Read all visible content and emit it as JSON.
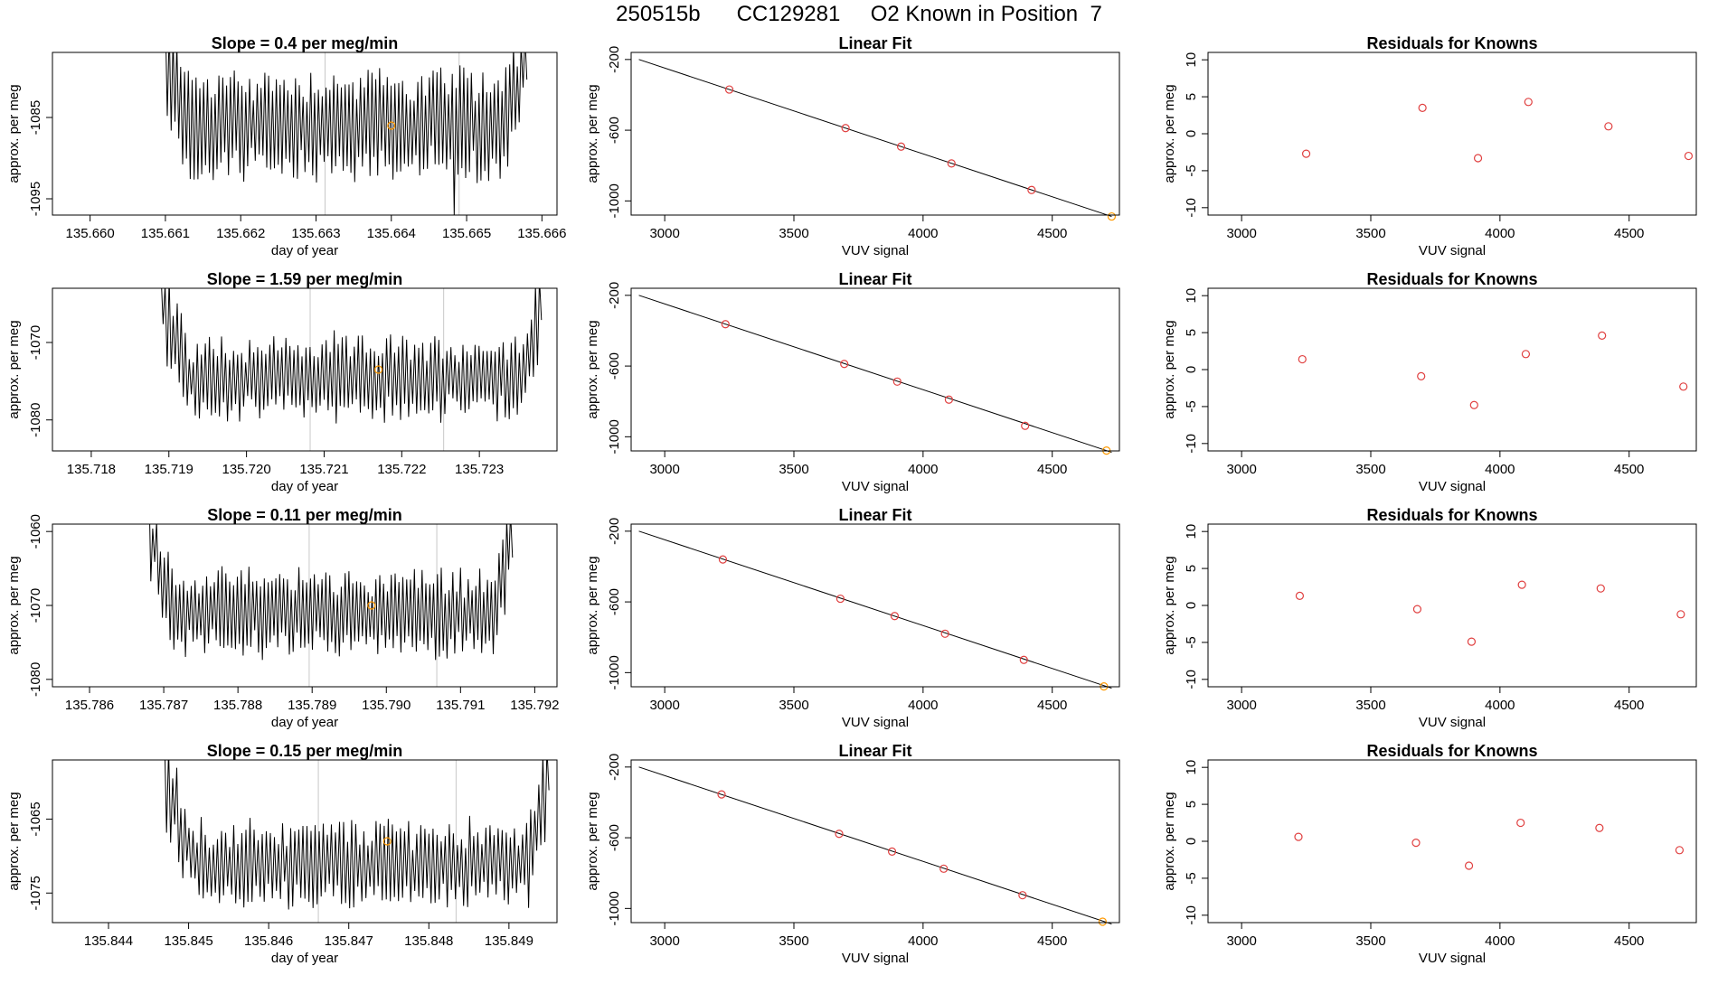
{
  "page": {
    "title": "250515b      CC129281     O2 Known in Position  7"
  },
  "colors": {
    "trace": "#000000",
    "mean_marker": "#ff9900",
    "fit_point": "#e04040",
    "residual_point": "#e04040",
    "boundary_line": "#c8c8c8"
  },
  "chart_data": [
    {
      "type": "line",
      "row": 1,
      "col": "time",
      "title": "Slope =  0.4  per meg/min",
      "xlabel": "day of year",
      "ylabel": "approx. per meg",
      "xlim": [
        135.6595,
        135.6662
      ],
      "ylim": [
        -1097,
        -1077
      ],
      "xticks": [
        135.66,
        135.661,
        135.662,
        135.663,
        135.664,
        135.665,
        135.666
      ],
      "xtick_labels": [
        "135.660",
        "135.661",
        "135.662",
        "135.663",
        "135.664",
        "135.665",
        "135.666"
      ],
      "yticks": [
        -1095,
        -1085
      ],
      "ytick_labels": [
        "-1095",
        "-1085"
      ],
      "series": [
        {
          "x_start": 135.661,
          "x_end": 135.6658,
          "n_points": 190,
          "y_mean": -1086,
          "amplitude": 6,
          "edges": {
            "start_y": -1077,
            "end_y": -1077,
            "start_pts": 12,
            "end_pts": 14
          },
          "spikes": [
            {
              "x": 135.66483,
              "y": -1097
            }
          ]
        }
      ],
      "vlines": [
        135.66312,
        135.6649
      ],
      "mean_marker": {
        "x": 135.664,
        "y": -1086
      }
    },
    {
      "type": "scatter",
      "row": 1,
      "col": "fit",
      "title": "Linear Fit",
      "xlabel": "VUV signal",
      "ylabel": "approx. per meg",
      "xlim": [
        2870,
        4760
      ],
      "ylim": [
        -1080,
        -160
      ],
      "xticks": [
        3000,
        3500,
        4000,
        4500
      ],
      "xtick_labels": [
        "3000",
        "3500",
        "4000",
        "4500"
      ],
      "yticks": [
        -1000,
        -600,
        -200
      ],
      "ytick_labels": [
        "-1000",
        "-600",
        "-200"
      ],
      "line": {
        "x": [
          2900,
          4730
        ],
        "y": [
          -200,
          -1088
        ]
      },
      "points": {
        "x": [
          3250,
          3700,
          3915,
          4110,
          4420,
          4730
        ],
        "y": [
          -370,
          -588,
          -693,
          -788,
          -938,
          -1088
        ]
      },
      "highlight_last": true
    },
    {
      "type": "scatter",
      "row": 1,
      "col": "resid",
      "title": "Residuals for Knowns",
      "xlabel": "VUV signal",
      "ylabel": "approx. per meg",
      "xlim": [
        2870,
        4760
      ],
      "ylim": [
        -11,
        11
      ],
      "xticks": [
        3000,
        3500,
        4000,
        4500
      ],
      "xtick_labels": [
        "3000",
        "3500",
        "4000",
        "4500"
      ],
      "yticks": [
        -10,
        -5,
        0,
        5,
        10
      ],
      "ytick_labels": [
        "-10",
        "-5",
        "0",
        "5",
        "10"
      ],
      "points": {
        "x": [
          3250,
          3700,
          3915,
          4110,
          4420,
          4730
        ],
        "y": [
          -2.7,
          3.5,
          -3.3,
          4.3,
          1.0,
          -3.0
        ]
      }
    },
    {
      "type": "line",
      "row": 2,
      "col": "time",
      "title": "Slope =  1.59  per meg/min",
      "xlabel": "day of year",
      "ylabel": "approx. per meg",
      "xlim": [
        135.7175,
        135.724
      ],
      "ylim": [
        -1084,
        -1063
      ],
      "xticks": [
        135.718,
        135.719,
        135.72,
        135.721,
        135.722,
        135.723
      ],
      "xtick_labels": [
        "135.718",
        "135.719",
        "135.720",
        "135.721",
        "135.722",
        "135.723"
      ],
      "yticks": [
        -1080,
        -1070
      ],
      "ytick_labels": [
        "-1080",
        "-1070"
      ],
      "series": [
        {
          "x_start": 135.7189,
          "x_end": 135.7238,
          "n_points": 190,
          "y_mean": -1074.5,
          "amplitude": 4.5,
          "edges": {
            "start_y": -1063,
            "end_y": -1063,
            "start_pts": 14,
            "end_pts": 10
          },
          "spikes": []
        }
      ],
      "vlines": [
        135.72082,
        135.72254
      ],
      "mean_marker": {
        "x": 135.7217,
        "y": -1073.5
      }
    },
    {
      "type": "scatter",
      "row": 2,
      "col": "fit",
      "title": "Linear Fit",
      "xlabel": "VUV signal",
      "ylabel": "approx. per meg",
      "xlim": [
        2870,
        4760
      ],
      "ylim": [
        -1080,
        -160
      ],
      "xticks": [
        3000,
        3500,
        4000,
        4500
      ],
      "xtick_labels": [
        "3000",
        "3500",
        "4000",
        "4500"
      ],
      "yticks": [
        -1000,
        -600,
        -200
      ],
      "ytick_labels": [
        "-1000",
        "-600",
        "-200"
      ],
      "line": {
        "x": [
          2900,
          4730
        ],
        "y": [
          -200,
          -1088
        ]
      },
      "points": {
        "x": [
          3235,
          3695,
          3900,
          4100,
          4395,
          4710
        ],
        "y": [
          -363,
          -588,
          -688,
          -790,
          -938,
          -1078
        ]
      },
      "highlight_last": true
    },
    {
      "type": "scatter",
      "row": 2,
      "col": "resid",
      "title": "Residuals for Knowns",
      "xlabel": "VUV signal",
      "ylabel": "approx. per meg",
      "xlim": [
        2870,
        4760
      ],
      "ylim": [
        -11,
        11
      ],
      "xticks": [
        3000,
        3500,
        4000,
        4500
      ],
      "xtick_labels": [
        "3000",
        "3500",
        "4000",
        "4500"
      ],
      "yticks": [
        -10,
        -5,
        0,
        5,
        10
      ],
      "ytick_labels": [
        "-10",
        "-5",
        "0",
        "5",
        "10"
      ],
      "points": {
        "x": [
          3235,
          3695,
          3900,
          4100,
          4395,
          4710
        ],
        "y": [
          1.4,
          -0.9,
          -4.8,
          2.1,
          4.6,
          -2.3
        ]
      }
    },
    {
      "type": "line",
      "row": 3,
      "col": "time",
      "title": "Slope =  0.11  per meg/min",
      "xlabel": "day of year",
      "ylabel": "approx. per meg",
      "xlim": [
        135.7855,
        135.7923
      ],
      "ylim": [
        -1081,
        -1059
      ],
      "xticks": [
        135.786,
        135.787,
        135.788,
        135.789,
        135.79,
        135.791,
        135.792
      ],
      "xtick_labels": [
        "135.786",
        "135.787",
        "135.788",
        "135.789",
        "135.790",
        "135.791",
        "135.792"
      ],
      "yticks": [
        -1080,
        -1070,
        -1060
      ],
      "ytick_labels": [
        "-1080",
        "-1070",
        "-1060"
      ],
      "series": [
        {
          "x_start": 135.7868,
          "x_end": 135.7917,
          "n_points": 190,
          "y_mean": -1071,
          "amplitude": 5,
          "edges": {
            "start_y": -1059,
            "end_y": -1059,
            "start_pts": 12,
            "end_pts": 10
          },
          "spikes": []
        }
      ],
      "vlines": [
        135.78896,
        135.79068
      ],
      "mean_marker": {
        "x": 135.7898,
        "y": -1070
      }
    },
    {
      "type": "scatter",
      "row": 3,
      "col": "fit",
      "title": "Linear Fit",
      "xlabel": "VUV signal",
      "ylabel": "approx. per meg",
      "xlim": [
        2870,
        4760
      ],
      "ylim": [
        -1080,
        -160
      ],
      "xticks": [
        3000,
        3500,
        4000,
        4500
      ],
      "xtick_labels": [
        "3000",
        "3500",
        "4000",
        "4500"
      ],
      "yticks": [
        -1000,
        -600,
        -200
      ],
      "ytick_labels": [
        "-1000",
        "-600",
        "-200"
      ],
      "line": {
        "x": [
          2900,
          4730
        ],
        "y": [
          -200,
          -1088
        ]
      },
      "points": {
        "x": [
          3225,
          3680,
          3890,
          4085,
          4390,
          4700
        ],
        "y": [
          -360,
          -582,
          -680,
          -780,
          -928,
          -1078
        ]
      },
      "highlight_last": true
    },
    {
      "type": "scatter",
      "row": 3,
      "col": "resid",
      "title": "Residuals for Knowns",
      "xlabel": "VUV signal",
      "ylabel": "approx. per meg",
      "xlim": [
        2870,
        4760
      ],
      "ylim": [
        -11,
        11
      ],
      "xticks": [
        3000,
        3500,
        4000,
        4500
      ],
      "xtick_labels": [
        "3000",
        "3500",
        "4000",
        "4500"
      ],
      "yticks": [
        -10,
        -5,
        0,
        5,
        10
      ],
      "ytick_labels": [
        "-10",
        "-5",
        "0",
        "5",
        "10"
      ],
      "points": {
        "x": [
          3225,
          3680,
          3890,
          4085,
          4390,
          4700
        ],
        "y": [
          1.3,
          -0.5,
          -4.9,
          2.8,
          2.3,
          -1.2
        ]
      }
    },
    {
      "type": "line",
      "row": 4,
      "col": "time",
      "title": "Slope =  0.15  per meg/min",
      "xlabel": "day of year",
      "ylabel": "approx. per meg",
      "xlim": [
        135.8433,
        135.8496
      ],
      "ylim": [
        -1079,
        -1057
      ],
      "xticks": [
        135.844,
        135.845,
        135.846,
        135.847,
        135.848,
        135.849
      ],
      "xtick_labels": [
        "135.844",
        "135.845",
        "135.846",
        "135.847",
        "135.848",
        "135.849"
      ],
      "yticks": [
        -1075,
        -1065
      ],
      "ytick_labels": [
        "-1075",
        "-1065"
      ],
      "series": [
        {
          "x_start": 135.8447,
          "x_end": 135.8495,
          "n_points": 190,
          "y_mean": -1071,
          "amplitude": 5,
          "edges": {
            "start_y": -1057,
            "end_y": -1057,
            "start_pts": 14,
            "end_pts": 10
          },
          "spikes": []
        }
      ],
      "vlines": [
        135.84662,
        135.84834
      ],
      "mean_marker": {
        "x": 135.84748,
        "y": -1068
      }
    },
    {
      "type": "scatter",
      "row": 4,
      "col": "fit",
      "title": "Linear Fit",
      "xlabel": "VUV signal",
      "ylabel": "approx. per meg",
      "xlim": [
        2870,
        4760
      ],
      "ylim": [
        -1080,
        -160
      ],
      "xticks": [
        3000,
        3500,
        4000,
        4500
      ],
      "xtick_labels": [
        "3000",
        "3500",
        "4000",
        "4500"
      ],
      "yticks": [
        -1000,
        -600,
        -200
      ],
      "ytick_labels": [
        "-1000",
        "-600",
        "-200"
      ],
      "line": {
        "x": [
          2900,
          4730
        ],
        "y": [
          -200,
          -1088
        ]
      },
      "points": {
        "x": [
          3220,
          3675,
          3880,
          4080,
          4385,
          4695
        ],
        "y": [
          -355,
          -578,
          -678,
          -775,
          -925,
          -1075
        ]
      },
      "highlight_last": true
    },
    {
      "type": "scatter",
      "row": 4,
      "col": "resid",
      "title": "Residuals for Knowns",
      "xlabel": "VUV signal",
      "ylabel": "approx. per meg",
      "xlim": [
        2870,
        4760
      ],
      "ylim": [
        -11,
        11
      ],
      "xticks": [
        3000,
        3500,
        4000,
        4500
      ],
      "xtick_labels": [
        "3000",
        "3500",
        "4000",
        "4500"
      ],
      "yticks": [
        -10,
        -5,
        0,
        5,
        10
      ],
      "ytick_labels": [
        "-10",
        "-5",
        "0",
        "5",
        "10"
      ],
      "points": {
        "x": [
          3220,
          3675,
          3880,
          4080,
          4385,
          4695
        ],
        "y": [
          0.6,
          -0.2,
          -3.3,
          2.5,
          1.8,
          -1.2
        ]
      }
    }
  ]
}
